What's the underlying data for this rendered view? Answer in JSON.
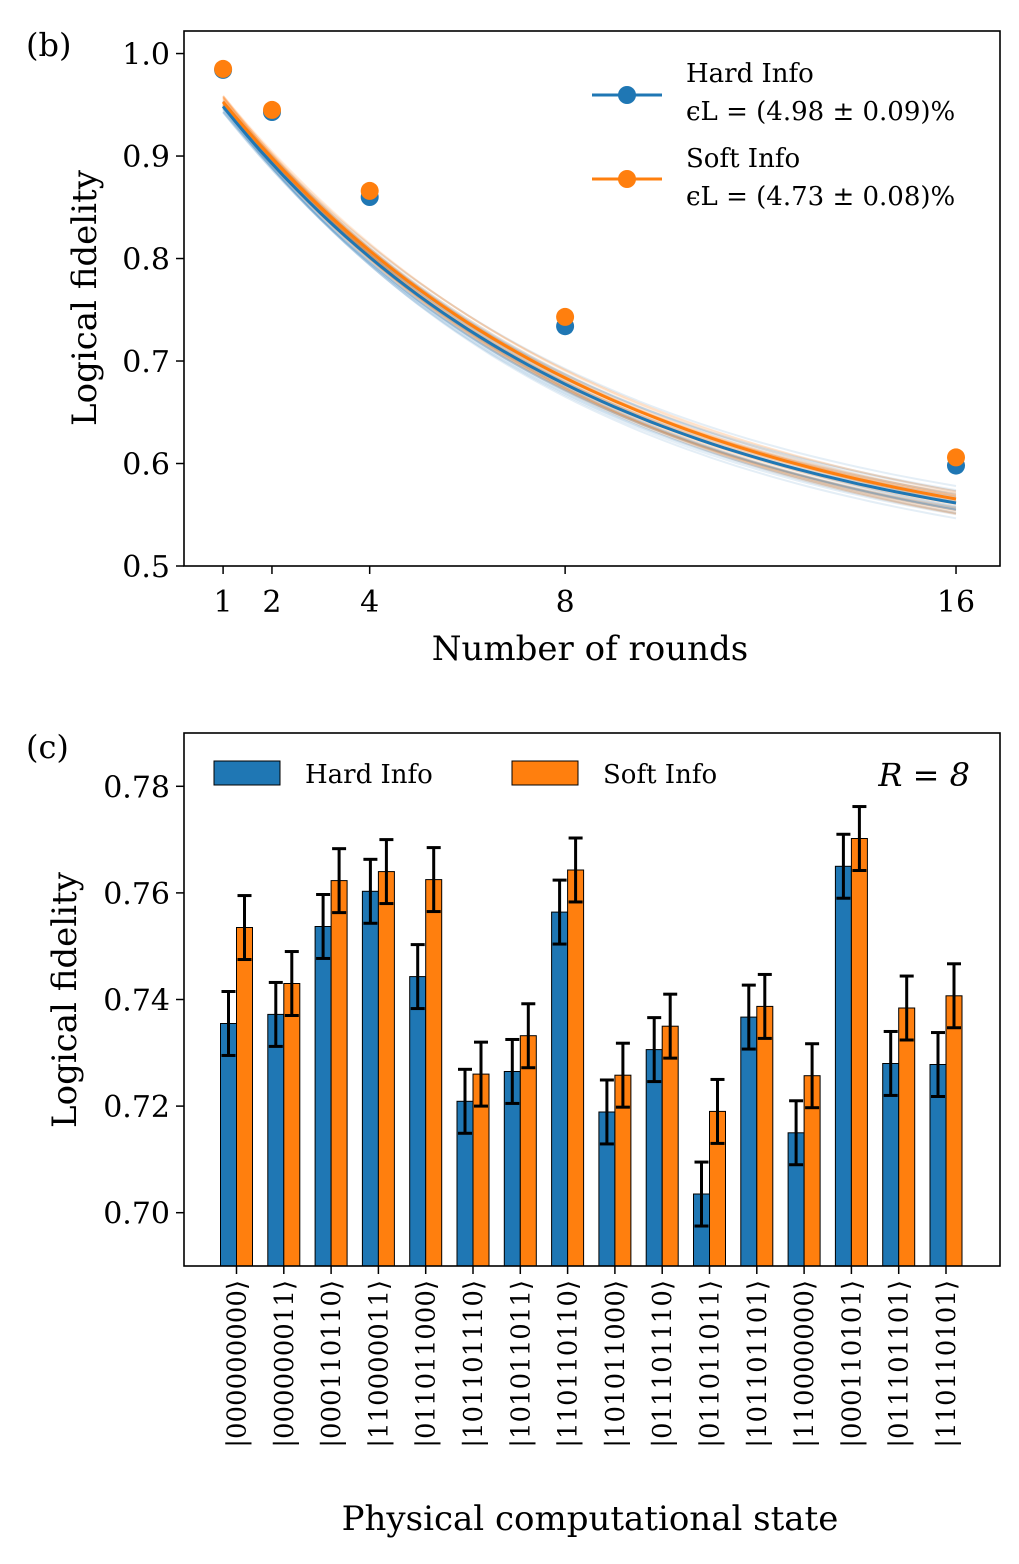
{
  "chart_data": [
    {
      "type": "line",
      "panel_label": "(b)",
      "xlabel": "Number of rounds",
      "ylabel": "Logical fidelity",
      "xlim": [
        0.2,
        16.9
      ],
      "ylim": [
        0.5,
        1.022
      ],
      "xticks": [
        1,
        2,
        4,
        8,
        16
      ],
      "yticks": [
        0.5,
        0.6,
        0.7,
        0.8,
        0.9,
        1.0
      ],
      "ytick_labels": [
        "0.5",
        "0.6",
        "0.7",
        "0.8",
        "0.9",
        "1.0"
      ],
      "legend_position": "top-right",
      "x": [
        1,
        2,
        4,
        8,
        16
      ],
      "series": [
        {
          "name": "Hard Info",
          "error_label": "ϵL = (4.98 ± 0.09)%",
          "color": "#1f77b4",
          "values": [
            0.984,
            0.943,
            0.86,
            0.734,
            0.598
          ],
          "fit": {
            "fit_a": 0.0516,
            "fit_tau": 7.55
          }
        },
        {
          "name": "Soft Info",
          "error_label": "ϵL = (4.73 ± 0.08)%",
          "color": "#ff7f0e",
          "values": [
            0.985,
            0.945,
            0.866,
            0.743,
            0.606
          ],
          "fit": {
            "fit_a": 0.0472,
            "fit_tau": 7.75
          }
        }
      ]
    },
    {
      "type": "bar",
      "panel_label": "(c)",
      "annotation": "R = 8",
      "xlabel": "Physical computational state",
      "ylabel": "Logical fidelity",
      "ylim": [
        0.69,
        0.79
      ],
      "yticks": [
        0.7,
        0.72,
        0.74,
        0.76,
        0.78
      ],
      "ytick_labels": [
        "0.70",
        "0.72",
        "0.74",
        "0.76",
        "0.78"
      ],
      "legend_position": "top-left",
      "categories": [
        "|000000000⟩",
        "|000000011⟩",
        "|000110110⟩",
        "|110000011⟩",
        "|011011000⟩",
        "|101101110⟩",
        "|101011011⟩",
        "|110110110⟩",
        "|101011000⟩",
        "|011101110⟩",
        "|011011011⟩",
        "|101101101⟩",
        "|110000000⟩",
        "|000110101⟩",
        "|011101101⟩",
        "|110110101⟩"
      ],
      "error_bar": 0.006,
      "series": [
        {
          "name": "Hard Info",
          "color": "#1f77b4",
          "values": [
            0.7355,
            0.7372,
            0.7537,
            0.7603,
            0.7443,
            0.7209,
            0.7265,
            0.7564,
            0.7189,
            0.7306,
            0.7035,
            0.7367,
            0.715,
            0.765,
            0.728,
            0.7278
          ]
        },
        {
          "name": "Soft Info",
          "color": "#ff7f0e",
          "values": [
            0.7535,
            0.743,
            0.7623,
            0.764,
            0.7625,
            0.726,
            0.7332,
            0.7643,
            0.7258,
            0.735,
            0.719,
            0.7387,
            0.7257,
            0.7702,
            0.7384,
            0.7407
          ]
        }
      ]
    }
  ]
}
